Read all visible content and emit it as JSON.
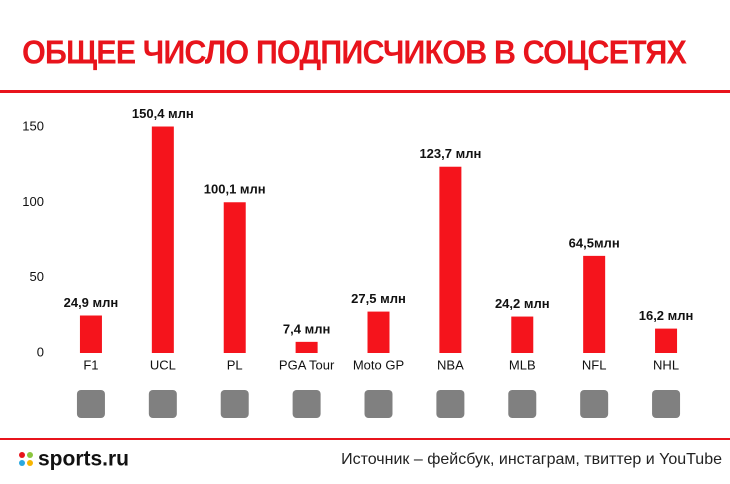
{
  "chart_data": {
    "type": "bar",
    "title": "ОБЩЕЕ ЧИСЛО ПОДПИСЧИКОВ В СОЦСЕТЯХ",
    "categories": [
      "F1",
      "UCL",
      "PL",
      "PGA Tour",
      "Moto GP",
      "NBA",
      "MLB",
      "NFL",
      "NHL"
    ],
    "values": [
      24.9,
      150.4,
      100.1,
      7.4,
      27.5,
      123.7,
      24.2,
      64.5,
      16.2
    ],
    "value_labels": [
      "24,9 млн",
      "150,4 млн",
      "100,1 млн",
      "7,4 млн",
      "27,5 млн",
      "123,7 млн",
      "24,2 млн",
      "64,5млн",
      "16,2 млн"
    ],
    "color": "#f5141c",
    "ylim": [
      0,
      170
    ],
    "yticks": [
      0,
      50,
      100,
      150
    ],
    "grid": false
  },
  "footer": {
    "brand": "sports.ru",
    "source": "Источник – фейсбук, инстаграм, твиттер и YouTube"
  }
}
